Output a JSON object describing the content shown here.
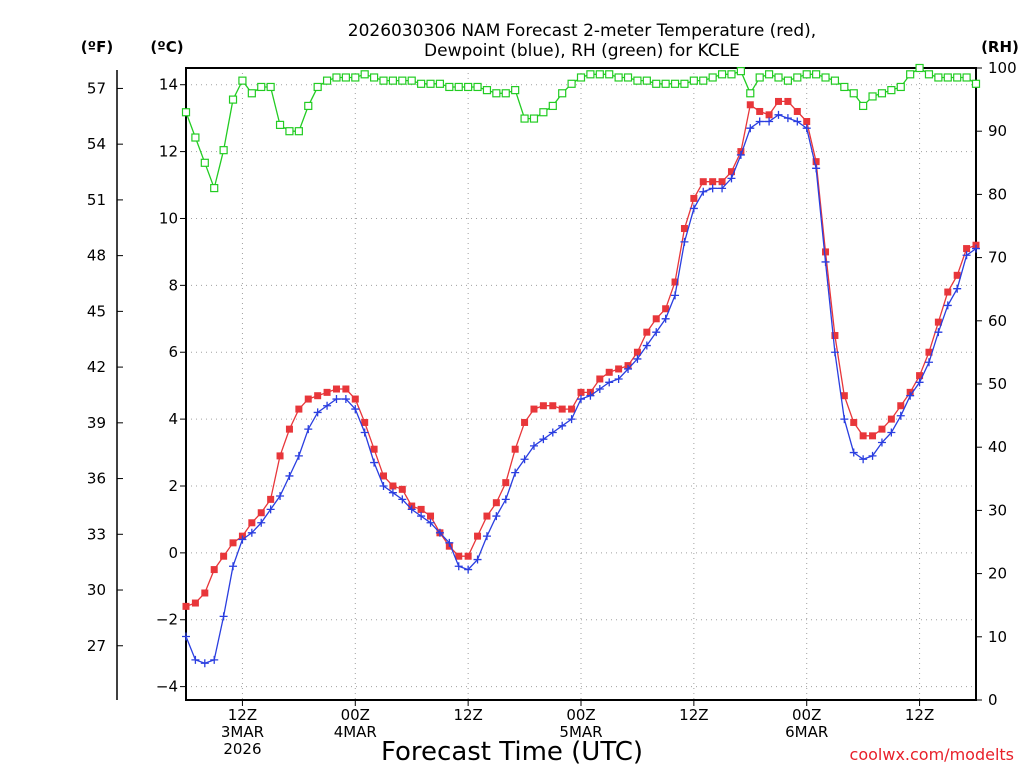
{
  "chart_data": {
    "type": "line",
    "title_line1": "2026030306 NAM Forecast 2-meter Temperature (red),",
    "title_line2": "Dewpoint (blue), RH (green) for KCLE",
    "xlabel": "Forecast Time (UTC)",
    "credit": "coolwx.com/modelts",
    "axis_headers": {
      "fahrenheit": "(ºF)",
      "celsius": "(ºC)",
      "rh": "(RH)"
    },
    "hours_range": [
      3,
      87
    ],
    "celsius_range": [
      -4.4,
      14.5
    ],
    "rh_range": [
      0,
      100
    ],
    "celsius_ticks": [
      {
        "v": 14,
        "label": "14"
      },
      {
        "v": 12,
        "label": "12"
      },
      {
        "v": 10,
        "label": "10"
      },
      {
        "v": 8,
        "label": "8"
      },
      {
        "v": 6,
        "label": "6"
      },
      {
        "v": 4,
        "label": "4"
      },
      {
        "v": 2,
        "label": "2"
      },
      {
        "v": 0,
        "label": "0"
      },
      {
        "v": -2,
        "label": "−2"
      },
      {
        "v": -4,
        "label": "−4"
      }
    ],
    "fahrenheit_ticks": [
      {
        "v": 57,
        "label": "57"
      },
      {
        "v": 54,
        "label": "54"
      },
      {
        "v": 51,
        "label": "51"
      },
      {
        "v": 48,
        "label": "48"
      },
      {
        "v": 45,
        "label": "45"
      },
      {
        "v": 42,
        "label": "42"
      },
      {
        "v": 39,
        "label": "39"
      },
      {
        "v": 36,
        "label": "36"
      },
      {
        "v": 33,
        "label": "33"
      },
      {
        "v": 30,
        "label": "30"
      },
      {
        "v": 27,
        "label": "27"
      }
    ],
    "rh_ticks": [
      {
        "v": 100,
        "label": "100"
      },
      {
        "v": 90,
        "label": "90"
      },
      {
        "v": 80,
        "label": "80"
      },
      {
        "v": 70,
        "label": "70"
      },
      {
        "v": 60,
        "label": "60"
      },
      {
        "v": 50,
        "label": "50"
      },
      {
        "v": 40,
        "label": "40"
      },
      {
        "v": 30,
        "label": "30"
      },
      {
        "v": 20,
        "label": "20"
      },
      {
        "v": 10,
        "label": "10"
      },
      {
        "v": 0,
        "label": "0"
      }
    ],
    "time_ticks": [
      {
        "hour": 9,
        "lines": [
          "12Z",
          "3MAR",
          "2026"
        ]
      },
      {
        "hour": 21,
        "lines": [
          "00Z",
          "4MAR"
        ]
      },
      {
        "hour": 33,
        "lines": [
          "12Z"
        ]
      },
      {
        "hour": 45,
        "lines": [
          "00Z",
          "5MAR"
        ]
      },
      {
        "hour": 57,
        "lines": [
          "12Z"
        ]
      },
      {
        "hour": 69,
        "lines": [
          "00Z",
          "6MAR"
        ]
      },
      {
        "hour": 81,
        "lines": [
          "12Z"
        ]
      }
    ],
    "series": [
      {
        "name": "Temperature",
        "unit": "C",
        "color": "#e8363a",
        "marker": "filled-square",
        "x": [
          3,
          4,
          5,
          6,
          7,
          8,
          9,
          10,
          11,
          12,
          13,
          14,
          15,
          16,
          17,
          18,
          19,
          20,
          21,
          22,
          23,
          24,
          25,
          26,
          27,
          28,
          29,
          30,
          31,
          32,
          33,
          34,
          35,
          36,
          37,
          38,
          39,
          40,
          41,
          42,
          43,
          44,
          45,
          46,
          47,
          48,
          49,
          50,
          51,
          52,
          53,
          54,
          55,
          56,
          57,
          58,
          59,
          60,
          61,
          62,
          63,
          64,
          65,
          66,
          67,
          68,
          69,
          70,
          71,
          72,
          73,
          74,
          75,
          76,
          77,
          78,
          79,
          80,
          81,
          82,
          83,
          84,
          85,
          86,
          87
        ],
        "y": [
          -1.6,
          -1.5,
          -1.2,
          -0.5,
          -0.1,
          0.3,
          0.5,
          0.9,
          1.2,
          1.6,
          2.9,
          3.7,
          4.3,
          4.6,
          4.7,
          4.8,
          4.9,
          4.9,
          4.6,
          3.9,
          3.1,
          2.3,
          2.0,
          1.9,
          1.4,
          1.3,
          1.1,
          0.6,
          0.2,
          -0.1,
          -0.1,
          0.5,
          1.1,
          1.5,
          2.1,
          3.1,
          3.9,
          4.3,
          4.4,
          4.4,
          4.3,
          4.3,
          4.8,
          4.8,
          5.2,
          5.4,
          5.5,
          5.6,
          6.0,
          6.6,
          7.0,
          7.3,
          8.1,
          9.7,
          10.6,
          11.1,
          11.1,
          11.1,
          11.4,
          12.0,
          13.4,
          13.2,
          13.1,
          13.5,
          13.5,
          13.2,
          12.9,
          11.7,
          9.0,
          6.5,
          4.7,
          3.9,
          3.5,
          3.5,
          3.7,
          4.0,
          4.4,
          4.8,
          5.3,
          6.0,
          6.9,
          7.8,
          8.3,
          9.1,
          9.2
        ]
      },
      {
        "name": "Dewpoint",
        "unit": "C",
        "color": "#2a3ee0",
        "marker": "plus",
        "x": [
          3,
          4,
          5,
          6,
          7,
          8,
          9,
          10,
          11,
          12,
          13,
          14,
          15,
          16,
          17,
          18,
          19,
          20,
          21,
          22,
          23,
          24,
          25,
          26,
          27,
          28,
          29,
          30,
          31,
          32,
          33,
          34,
          35,
          36,
          37,
          38,
          39,
          40,
          41,
          42,
          43,
          44,
          45,
          46,
          47,
          48,
          49,
          50,
          51,
          52,
          53,
          54,
          55,
          56,
          57,
          58,
          59,
          60,
          61,
          62,
          63,
          64,
          65,
          66,
          67,
          68,
          69,
          70,
          71,
          72,
          73,
          74,
          75,
          76,
          77,
          78,
          79,
          80,
          81,
          82,
          83,
          84,
          85,
          86,
          87
        ],
        "y": [
          -2.5,
          -3.2,
          -3.3,
          -3.2,
          -1.9,
          -0.4,
          0.4,
          0.6,
          0.9,
          1.3,
          1.7,
          2.3,
          2.9,
          3.7,
          4.2,
          4.4,
          4.6,
          4.6,
          4.3,
          3.6,
          2.7,
          2.0,
          1.8,
          1.6,
          1.3,
          1.1,
          0.9,
          0.6,
          0.3,
          -0.4,
          -0.5,
          -0.2,
          0.5,
          1.1,
          1.6,
          2.4,
          2.8,
          3.2,
          3.4,
          3.6,
          3.8,
          4.0,
          4.6,
          4.7,
          4.9,
          5.1,
          5.2,
          5.5,
          5.8,
          6.2,
          6.6,
          7.0,
          7.7,
          9.3,
          10.3,
          10.8,
          10.9,
          10.9,
          11.2,
          11.9,
          12.7,
          12.9,
          12.9,
          13.1,
          13.0,
          12.9,
          12.7,
          11.5,
          8.7,
          6.0,
          4.0,
          3.0,
          2.8,
          2.9,
          3.3,
          3.6,
          4.1,
          4.7,
          5.1,
          5.7,
          6.6,
          7.4,
          7.9,
          8.9,
          9.1
        ]
      },
      {
        "name": "RH",
        "unit": "%",
        "color": "#22cc22",
        "marker": "open-square",
        "x": [
          3,
          4,
          5,
          6,
          7,
          8,
          9,
          10,
          11,
          12,
          13,
          14,
          15,
          16,
          17,
          18,
          19,
          20,
          21,
          22,
          23,
          24,
          25,
          26,
          27,
          28,
          29,
          30,
          31,
          32,
          33,
          34,
          35,
          36,
          37,
          38,
          39,
          40,
          41,
          42,
          43,
          44,
          45,
          46,
          47,
          48,
          49,
          50,
          51,
          52,
          53,
          54,
          55,
          56,
          57,
          58,
          59,
          60,
          61,
          62,
          63,
          64,
          65,
          66,
          67,
          68,
          69,
          70,
          71,
          72,
          73,
          74,
          75,
          76,
          77,
          78,
          79,
          80,
          81,
          82,
          83,
          84,
          85,
          86,
          87
        ],
        "y": [
          93,
          89,
          85,
          81,
          87,
          95,
          98,
          96,
          97,
          97,
          91,
          90,
          90,
          94,
          97,
          98,
          98.5,
          98.5,
          98.5,
          99,
          98.5,
          98,
          98,
          98,
          98,
          97.5,
          97.5,
          97.5,
          97,
          97,
          97,
          97,
          96.5,
          96,
          96,
          96.5,
          92,
          92,
          93,
          94,
          96,
          97.5,
          98.5,
          99,
          99,
          99,
          98.5,
          98.5,
          98,
          98,
          97.5,
          97.5,
          97.5,
          97.5,
          98,
          98,
          98.5,
          99,
          99,
          99.5,
          96,
          98.5,
          99,
          98.5,
          98,
          98.5,
          99,
          99,
          98.5,
          98,
          97,
          96,
          94,
          95.5,
          96,
          96.5,
          97,
          99,
          100,
          99,
          98.5,
          98.5,
          98.5,
          98.5,
          97.5
        ]
      }
    ]
  }
}
